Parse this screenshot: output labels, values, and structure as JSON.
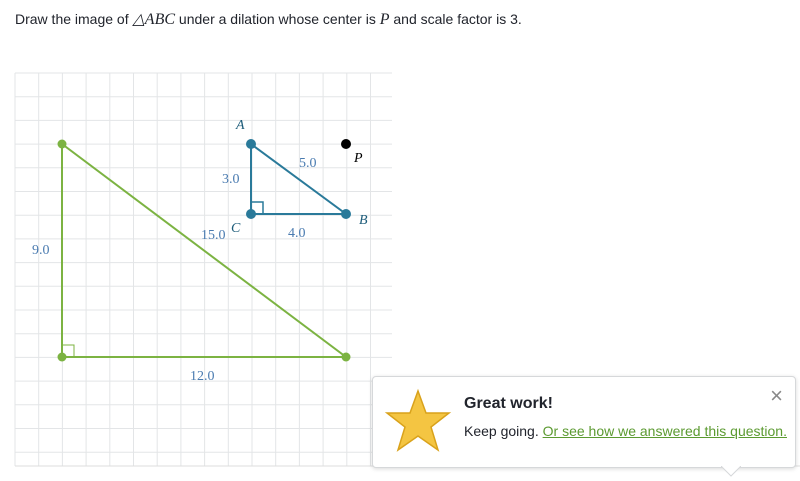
{
  "question": {
    "prefix": "Draw the image of ",
    "triangle": "△ABC",
    "middle": " under a dilation whose center is ",
    "center": "P",
    "suffix": " and scale factor is 3."
  },
  "figure": {
    "points": {
      "a": "A",
      "b": "B",
      "c": "C",
      "p": "P"
    },
    "original_sides": {
      "ap_side": "5.0",
      "ac": "3.0",
      "cb": "4.0"
    },
    "image_sides": {
      "hypotenuse": "15.0",
      "left": "9.0",
      "bottom": "12.0"
    }
  },
  "feedback": {
    "title": "Great work!",
    "text": "Keep going.",
    "link": "Or see how we answered this question.",
    "close": "×"
  }
}
